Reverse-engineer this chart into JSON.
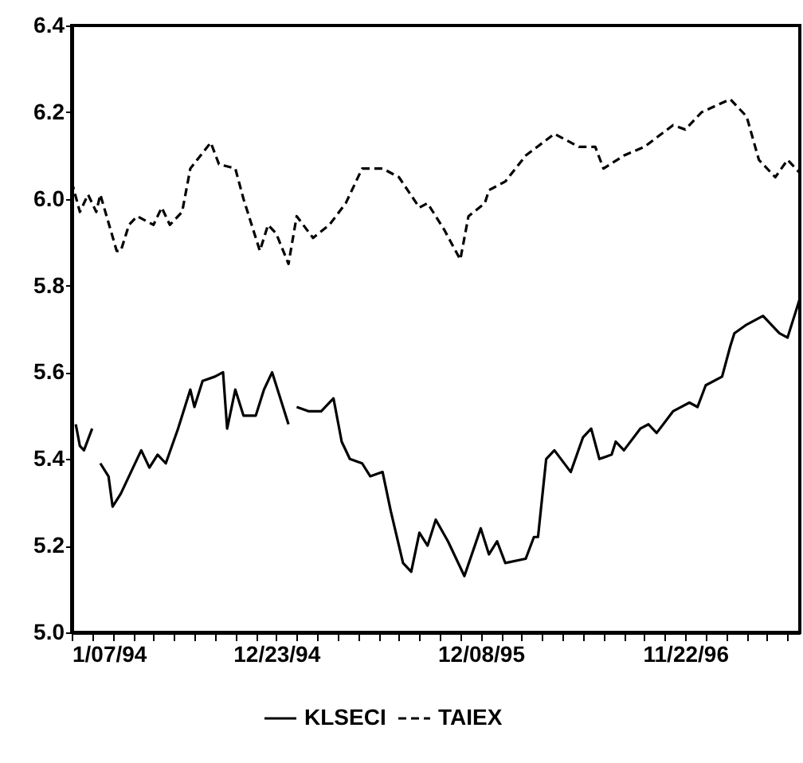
{
  "chart_data": {
    "type": "line",
    "legend": "bottom",
    "xlim": [
      "1994-01-07",
      "1997-06-06"
    ],
    "xticks": [
      {
        "value": "1994-01-07",
        "label": "1/07/94"
      },
      {
        "value": "1994-02-11",
        "label": null
      },
      {
        "value": "1994-03-18",
        "label": null
      },
      {
        "value": "1994-04-22",
        "label": null
      },
      {
        "value": "1994-05-27",
        "label": null
      },
      {
        "value": "1994-07-01",
        "label": null
      },
      {
        "value": "1994-08-05",
        "label": null
      },
      {
        "value": "1994-09-09",
        "label": null
      },
      {
        "value": "1994-10-14",
        "label": null
      },
      {
        "value": "1994-11-18",
        "label": null
      },
      {
        "value": "1994-12-23",
        "label": "12/23/94"
      },
      {
        "value": "1995-01-27",
        "label": null
      },
      {
        "value": "1995-03-03",
        "label": null
      },
      {
        "value": "1995-04-07",
        "label": null
      },
      {
        "value": "1995-05-12",
        "label": null
      },
      {
        "value": "1995-06-16",
        "label": null
      },
      {
        "value": "1995-07-21",
        "label": null
      },
      {
        "value": "1995-08-25",
        "label": null
      },
      {
        "value": "1995-09-29",
        "label": null
      },
      {
        "value": "1995-11-03",
        "label": null
      },
      {
        "value": "1995-12-08",
        "label": "12/08/95"
      },
      {
        "value": "1996-01-12",
        "label": null
      },
      {
        "value": "1996-02-16",
        "label": null
      },
      {
        "value": "1996-03-22",
        "label": null
      },
      {
        "value": "1996-04-26",
        "label": null
      },
      {
        "value": "1996-05-31",
        "label": null
      },
      {
        "value": "1996-07-05",
        "label": null
      },
      {
        "value": "1996-08-09",
        "label": null
      },
      {
        "value": "1996-09-13",
        "label": null
      },
      {
        "value": "1996-10-18",
        "label": null
      },
      {
        "value": "1996-11-22",
        "label": "11/22/96"
      },
      {
        "value": "1996-12-27",
        "label": null
      },
      {
        "value": "1997-01-31",
        "label": null
      },
      {
        "value": "1997-03-07",
        "label": null
      },
      {
        "value": "1997-04-11",
        "label": null
      },
      {
        "value": "1997-05-16",
        "label": null
      }
    ],
    "ylim": [
      5.0,
      6.4
    ],
    "yticks": [
      {
        "value": 5,
        "label": "5.0"
      },
      5.2,
      5.4,
      5.6,
      5.8,
      {
        "value": 6,
        "label": "6.0"
      },
      6.2,
      6.4
    ],
    "series": [
      {
        "name": "KLSECI",
        "color": "#000000",
        "line_style": "solid",
        "x": [
          "1994-01-14",
          "1994-01-21",
          "1994-01-28",
          "1994-02-11",
          "1994-02-18",
          "1994-02-25",
          "1994-03-11",
          "1994-03-18",
          "1994-04-01",
          "1994-04-22",
          "1994-05-06",
          "1994-05-20",
          "1994-06-03",
          "1994-06-17",
          "1994-07-08",
          "1994-07-29",
          "1994-08-05",
          "1994-08-19",
          "1994-09-09",
          "1994-09-23",
          "1994-09-30",
          "1994-10-14",
          "1994-10-28",
          "1994-11-18",
          "1994-12-02",
          "1994-12-16",
          "1995-01-06",
          "1995-01-13",
          "1995-01-20",
          "1995-01-27",
          "1995-02-17",
          "1995-03-10",
          "1995-03-31",
          "1995-04-14",
          "1995-04-28",
          "1995-05-19",
          "1995-06-02",
          "1995-06-23",
          "1995-07-07",
          "1995-07-28",
          "1995-08-11",
          "1995-08-25",
          "1995-09-08",
          "1995-09-22",
          "1995-10-13",
          "1995-11-10",
          "1995-12-08",
          "1995-12-22",
          "1996-01-05",
          "1996-01-19",
          "1996-02-23",
          "1996-03-08",
          "1996-03-15",
          "1996-03-29",
          "1996-04-12",
          "1996-05-10",
          "1996-05-31",
          "1996-06-14",
          "1996-06-28",
          "1996-07-19",
          "1996-07-26",
          "1996-08-09",
          "1996-09-06",
          "1996-09-20",
          "1996-10-04",
          "1996-11-01",
          "1996-11-29",
          "1996-12-13",
          "1996-12-27",
          "1997-01-24",
          "1997-02-07",
          "1997-02-14",
          "1997-03-07",
          "1997-04-04",
          "1997-05-02",
          "1997-05-16",
          "1997-06-06"
        ],
        "values": [
          5.48,
          5.43,
          5.42,
          5.47,
          null,
          5.39,
          5.36,
          5.29,
          5.32,
          5.38,
          5.42,
          5.38,
          5.41,
          5.39,
          5.47,
          5.56,
          5.52,
          5.58,
          5.59,
          5.6,
          5.47,
          5.56,
          5.5,
          5.5,
          5.56,
          5.6,
          5.51,
          5.48,
          null,
          5.52,
          5.51,
          5.51,
          5.54,
          5.44,
          5.4,
          5.39,
          5.36,
          5.37,
          5.28,
          5.16,
          5.14,
          5.23,
          5.2,
          5.26,
          5.21,
          5.13,
          5.24,
          5.18,
          5.21,
          5.16,
          5.17,
          5.22,
          5.22,
          5.4,
          5.42,
          5.37,
          5.45,
          5.47,
          5.4,
          5.41,
          5.44,
          5.42,
          5.47,
          5.48,
          5.46,
          5.51,
          5.53,
          5.52,
          5.57,
          5.59,
          5.66,
          5.69,
          5.71,
          5.73,
          5.69,
          5.68,
          5.77
        ]
      },
      {
        "name": "TAIEX",
        "color": "#000000",
        "line_style": "dashed",
        "x": [
          "1994-01-07",
          "1994-01-21",
          "1994-02-04",
          "1994-02-18",
          "1994-02-25",
          "1994-03-25",
          "1994-04-01",
          "1994-04-15",
          "1994-04-29",
          "1994-05-27",
          "1994-06-10",
          "1994-06-24",
          "1994-07-15",
          "1994-07-29",
          "1994-09-02",
          "1994-09-16",
          "1994-10-14",
          "1994-10-28",
          "1994-11-25",
          "1994-12-09",
          "1994-12-23",
          "1995-01-13",
          "1995-01-27",
          "1995-02-24",
          "1995-03-24",
          "1995-04-21",
          "1995-05-19",
          "1995-06-23",
          "1995-07-21",
          "1995-08-25",
          "1995-09-08",
          "1995-10-06",
          "1995-11-03",
          "1995-11-17",
          "1995-12-15",
          "1995-12-22",
          "1996-01-19",
          "1996-02-23",
          "1996-04-12",
          "1996-05-24",
          "1996-06-21",
          "1996-07-05",
          "1996-08-09",
          "1996-09-13",
          "1996-11-01",
          "1996-11-22",
          "1996-12-20",
          "1997-02-07",
          "1997-03-07",
          "1997-03-28",
          "1997-04-25",
          "1997-05-16",
          "1997-06-06"
        ],
        "values": [
          6.04,
          5.97,
          6.01,
          5.97,
          6.01,
          5.88,
          5.88,
          5.94,
          5.96,
          5.94,
          5.98,
          5.94,
          5.97,
          6.07,
          6.13,
          6.08,
          6.07,
          6.0,
          5.88,
          5.94,
          5.92,
          5.85,
          5.96,
          5.91,
          5.94,
          5.99,
          6.07,
          6.07,
          6.05,
          5.98,
          5.99,
          5.93,
          5.86,
          5.96,
          5.99,
          6.02,
          6.04,
          6.1,
          6.15,
          6.12,
          6.12,
          6.07,
          6.1,
          6.12,
          6.17,
          6.16,
          6.2,
          6.23,
          6.19,
          6.09,
          6.05,
          6.09,
          6.06
        ]
      }
    ]
  }
}
